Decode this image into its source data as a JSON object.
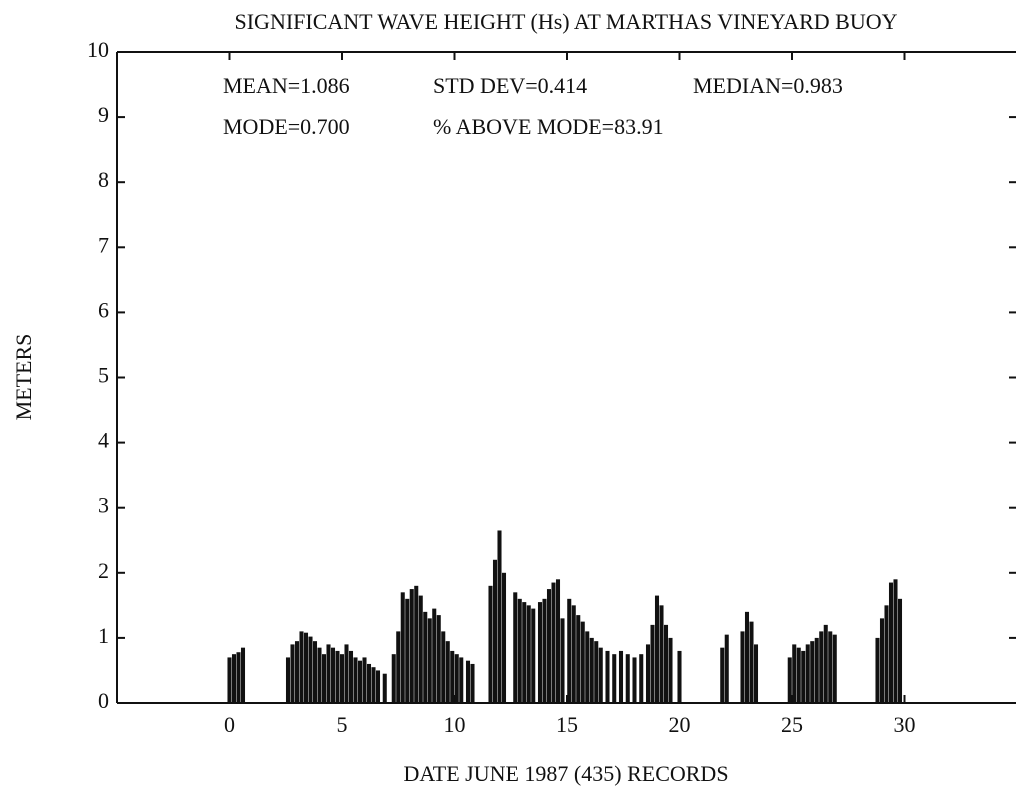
{
  "chart_data": {
    "type": "bar",
    "title": "SIGNIFICANT WAVE HEIGHT (Hs) AT MARTHAS VINEYARD BUOY",
    "x_label": "DATE JUNE 1987 (435) RECORDS",
    "y_label": "METERS",
    "annotations": [
      "MEAN=1.086",
      "STD DEV=0.414",
      "MEDIAN=0.983",
      "MODE=0.700",
      "% ABOVE MODE=83.91"
    ],
    "color": "#111111",
    "xlim": [
      -5,
      35
    ],
    "xticks": [
      0,
      5,
      10,
      15,
      20,
      25,
      30
    ],
    "ylim": [
      0,
      10
    ],
    "yticks": [
      0,
      1,
      2,
      3,
      4,
      5,
      6,
      7,
      8,
      9,
      10
    ],
    "x": [
      0.0,
      0.2,
      0.4,
      0.6,
      2.6,
      2.8,
      3.0,
      3.2,
      3.4,
      3.6,
      3.8,
      4.0,
      4.2,
      4.4,
      4.6,
      4.8,
      5.0,
      5.2,
      5.4,
      5.6,
      5.8,
      6.0,
      6.2,
      6.4,
      6.6,
      6.9,
      7.3,
      7.5,
      7.7,
      7.9,
      8.1,
      8.3,
      8.5,
      8.7,
      8.9,
      9.1,
      9.3,
      9.5,
      9.7,
      9.9,
      10.1,
      10.3,
      10.6,
      10.8,
      11.6,
      11.8,
      12.0,
      12.2,
      12.7,
      12.9,
      13.1,
      13.3,
      13.5,
      13.8,
      14.0,
      14.2,
      14.4,
      14.6,
      14.8,
      15.1,
      15.3,
      15.5,
      15.7,
      15.9,
      16.1,
      16.3,
      16.5,
      16.8,
      17.1,
      17.4,
      17.7,
      18.0,
      18.3,
      18.6,
      18.8,
      19.0,
      19.2,
      19.4,
      19.6,
      20.0,
      21.9,
      22.1,
      22.8,
      23.0,
      23.2,
      23.4,
      24.9,
      25.1,
      25.3,
      25.5,
      25.7,
      25.9,
      26.1,
      26.3,
      26.5,
      26.7,
      26.9,
      28.8,
      29.0,
      29.2,
      29.4,
      29.6,
      29.8
    ],
    "values": [
      0.7,
      0.75,
      0.78,
      0.85,
      0.7,
      0.9,
      0.95,
      1.1,
      1.08,
      1.02,
      0.95,
      0.85,
      0.75,
      0.9,
      0.85,
      0.8,
      0.75,
      0.9,
      0.8,
      0.7,
      0.65,
      0.7,
      0.6,
      0.55,
      0.5,
      0.45,
      0.75,
      1.1,
      1.7,
      1.6,
      1.75,
      1.8,
      1.65,
      1.4,
      1.3,
      1.45,
      1.35,
      1.1,
      0.95,
      0.8,
      0.75,
      0.7,
      0.65,
      0.6,
      1.8,
      2.2,
      2.65,
      2.0,
      1.7,
      1.6,
      1.55,
      1.5,
      1.45,
      1.55,
      1.6,
      1.75,
      1.85,
      1.9,
      1.3,
      1.6,
      1.5,
      1.35,
      1.25,
      1.1,
      1.0,
      0.95,
      0.85,
      0.8,
      0.75,
      0.8,
      0.75,
      0.7,
      0.75,
      0.9,
      1.2,
      1.65,
      1.5,
      1.2,
      1.0,
      0.8,
      0.85,
      1.05,
      1.1,
      1.4,
      1.25,
      0.9,
      0.7,
      0.9,
      0.85,
      0.8,
      0.9,
      0.95,
      1.0,
      1.1,
      1.2,
      1.1,
      1.05,
      1.0,
      1.3,
      1.5,
      1.85,
      1.9,
      1.6
    ]
  }
}
